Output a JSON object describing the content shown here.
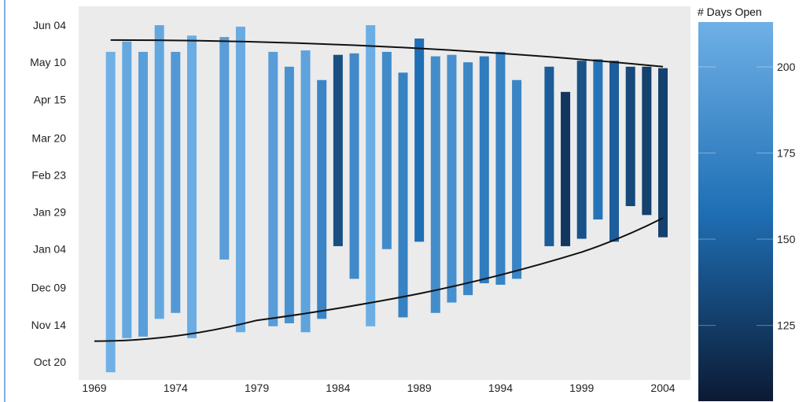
{
  "chart_data": {
    "type": "bar",
    "subtype": "floating-range",
    "title": "",
    "xlabel": "",
    "ylabel": "",
    "x_ticks": [
      "1969",
      "1974",
      "1979",
      "1984",
      "1989",
      "1994",
      "1999",
      "2004"
    ],
    "y_ticks": [
      "Oct 20",
      "Nov 14",
      "Dec 09",
      "Jan 04",
      "Jan 29",
      "Feb 23",
      "Mar 20",
      "Apr 15",
      "May 10",
      "Jun 04"
    ],
    "xlim": [
      1967.5,
      2005.5
    ],
    "ylim_day_index": [
      -8,
      234
    ],
    "grid": false,
    "colorbar": {
      "title": "# Days Open",
      "ticks": [
        125,
        150,
        175,
        200
      ],
      "range": [
        103,
        213
      ],
      "colors": {
        "low": "#0b1a33",
        "mid": "#1f6fb5",
        "high": "#6fb0e6"
      }
    },
    "series": [
      {
        "x": 1970,
        "start": "Oct 13",
        "end": "May 17",
        "days_open": 213
      },
      {
        "x": 1971,
        "start": "Nov 05",
        "end": "May 24",
        "days_open": 206
      },
      {
        "x": 1972,
        "start": "Nov 06",
        "end": "May 17",
        "days_open": 198
      },
      {
        "x": 1973,
        "start": "Nov 18",
        "end": "Jun 04",
        "days_open": 205
      },
      {
        "x": 1974,
        "start": "Nov 22",
        "end": "May 17",
        "days_open": 193
      },
      {
        "x": 1975,
        "start": "Nov 05",
        "end": "May 28",
        "days_open": 210
      },
      {
        "x": 1977,
        "start": "Dec 28",
        "end": "May 27",
        "days_open": 197
      },
      {
        "x": 1978,
        "start": "Nov 09",
        "end": "Jun 03",
        "days_open": 208
      },
      {
        "x": 1980,
        "start": "Nov 13",
        "end": "May 17",
        "days_open": 197
      },
      {
        "x": 1981,
        "start": "Nov 15",
        "end": "May 07",
        "days_open": 187
      },
      {
        "x": 1982,
        "start": "Nov 09",
        "end": "May 18",
        "days_open": 202
      },
      {
        "x": 1983,
        "start": "Nov 18",
        "end": "Apr 28",
        "days_open": 177
      },
      {
        "x": 1984,
        "start": "Jan 06",
        "end": "May 15",
        "days_open": 137
      },
      {
        "x": 1985,
        "start": "Dec 15",
        "end": "May 16",
        "days_open": 181
      },
      {
        "x": 1986,
        "start": "Nov 13",
        "end": "Jun 04",
        "days_open": 211
      },
      {
        "x": 1987,
        "start": "Jan 04",
        "end": "May 17",
        "days_open": 182
      },
      {
        "x": 1988,
        "start": "Nov 19",
        "end": "May 03",
        "days_open": 174
      },
      {
        "x": 1989,
        "start": "Jan 09",
        "end": "May 26",
        "days_open": 158
      },
      {
        "x": 1990,
        "start": "Nov 22",
        "end": "May 14",
        "days_open": 183
      },
      {
        "x": 1991,
        "start": "Nov 29",
        "end": "May 15",
        "days_open": 186
      },
      {
        "x": 1992,
        "start": "Dec 04",
        "end": "May 10",
        "days_open": 178
      },
      {
        "x": 1993,
        "start": "Dec 12",
        "end": "May 14",
        "days_open": 169
      },
      {
        "x": 1994,
        "start": "Dec 11",
        "end": "May 17",
        "days_open": 175
      },
      {
        "x": 1995,
        "start": "Dec 15",
        "end": "Apr 28",
        "days_open": 177
      },
      {
        "x": 1997,
        "start": "Jan 06",
        "end": "May 07",
        "days_open": 146
      },
      {
        "x": 1998,
        "start": "Jan 06",
        "end": "Apr 20",
        "days_open": 121
      },
      {
        "x": 1999,
        "start": "Jan 11",
        "end": "May 11",
        "days_open": 139
      },
      {
        "x": 2000,
        "start": "Jan 24",
        "end": "May 12",
        "days_open": 162
      },
      {
        "x": 2001,
        "start": "Jan 09",
        "end": "May 11",
        "days_open": 147
      },
      {
        "x": 2002,
        "start": "Feb 02",
        "end": "May 07",
        "days_open": 133
      },
      {
        "x": 2003,
        "start": "Jan 27",
        "end": "May 07",
        "days_open": 128
      },
      {
        "x": 2004,
        "start": "Jan 12",
        "end": "May 06",
        "days_open": 128
      }
    ],
    "trend_lines": [
      {
        "name": "",
        "points": [
          {
            "x": 1970,
            "date": "May 25"
          },
          {
            "x": 2004,
            "date": "May 07"
          }
        ]
      },
      {
        "name": "",
        "points": [
          {
            "x": 1969,
            "date": "Nov 03"
          },
          {
            "x": 1979,
            "date": "Nov 17"
          },
          {
            "x": 1989,
            "date": "Dec 05"
          },
          {
            "x": 1999,
            "date": "Jan 02"
          },
          {
            "x": 2004,
            "date": "Jan 25"
          }
        ]
      }
    ]
  }
}
